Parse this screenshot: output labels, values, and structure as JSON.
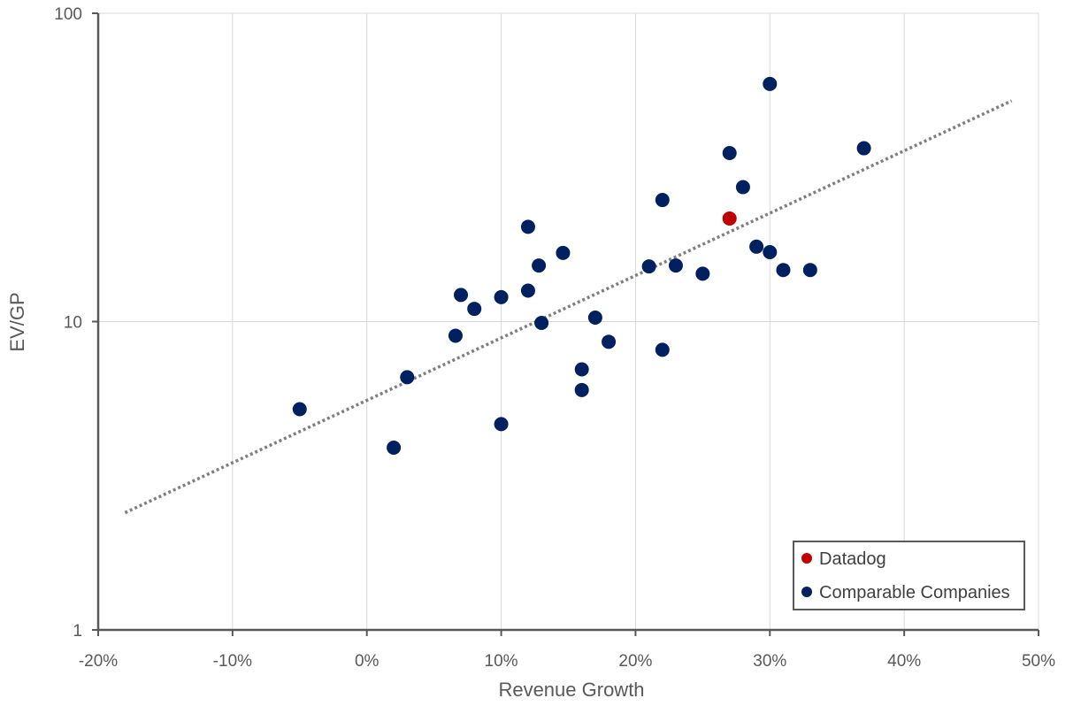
{
  "chart_data": {
    "type": "scatter",
    "title": "",
    "xlabel": "Revenue Growth",
    "ylabel": "EV/GP",
    "xlim": [
      -0.2,
      0.5
    ],
    "ylim": [
      1,
      100
    ],
    "yscale": "log",
    "x_ticks": [
      -0.2,
      -0.1,
      0.0,
      0.1,
      0.2,
      0.3,
      0.4,
      0.5
    ],
    "x_tick_labels": [
      "-20%",
      "-10%",
      "0%",
      "10%",
      "20%",
      "30%",
      "40%",
      "50%"
    ],
    "y_ticks": [
      1,
      10,
      100
    ],
    "y_tick_labels": [
      "1",
      "10",
      "100"
    ],
    "grid": true,
    "legend_position": "bottom-right",
    "series": [
      {
        "name": "Datadog",
        "color": "#c00000",
        "points": [
          {
            "x": 0.27,
            "y": 21.6
          }
        ]
      },
      {
        "name": "Comparable Companies",
        "color": "#002060",
        "points": [
          {
            "x": -0.05,
            "y": 5.2
          },
          {
            "x": 0.02,
            "y": 3.9
          },
          {
            "x": 0.03,
            "y": 6.6
          },
          {
            "x": 0.066,
            "y": 9.0
          },
          {
            "x": 0.07,
            "y": 12.2
          },
          {
            "x": 0.08,
            "y": 11.0
          },
          {
            "x": 0.1,
            "y": 12.0
          },
          {
            "x": 0.1,
            "y": 4.65
          },
          {
            "x": 0.12,
            "y": 20.3
          },
          {
            "x": 0.12,
            "y": 12.6
          },
          {
            "x": 0.128,
            "y": 15.2
          },
          {
            "x": 0.13,
            "y": 9.9
          },
          {
            "x": 0.146,
            "y": 16.7
          },
          {
            "x": 0.16,
            "y": 7.0
          },
          {
            "x": 0.16,
            "y": 6.0
          },
          {
            "x": 0.17,
            "y": 10.3
          },
          {
            "x": 0.18,
            "y": 8.6
          },
          {
            "x": 0.21,
            "y": 15.1
          },
          {
            "x": 0.22,
            "y": 24.8
          },
          {
            "x": 0.22,
            "y": 8.1
          },
          {
            "x": 0.23,
            "y": 15.2
          },
          {
            "x": 0.25,
            "y": 14.3
          },
          {
            "x": 0.27,
            "y": 35.2
          },
          {
            "x": 0.28,
            "y": 27.3
          },
          {
            "x": 0.29,
            "y": 17.5
          },
          {
            "x": 0.3,
            "y": 59.0
          },
          {
            "x": 0.3,
            "y": 16.8
          },
          {
            "x": 0.31,
            "y": 14.7
          },
          {
            "x": 0.33,
            "y": 14.7
          },
          {
            "x": 0.37,
            "y": 36.5
          }
        ]
      }
    ],
    "trendline": {
      "type": "exponential",
      "style": "dotted",
      "color": "#7f7f7f",
      "x_start": -0.18,
      "y_start": 2.4,
      "x_end": 0.48,
      "y_end": 52.0
    }
  }
}
